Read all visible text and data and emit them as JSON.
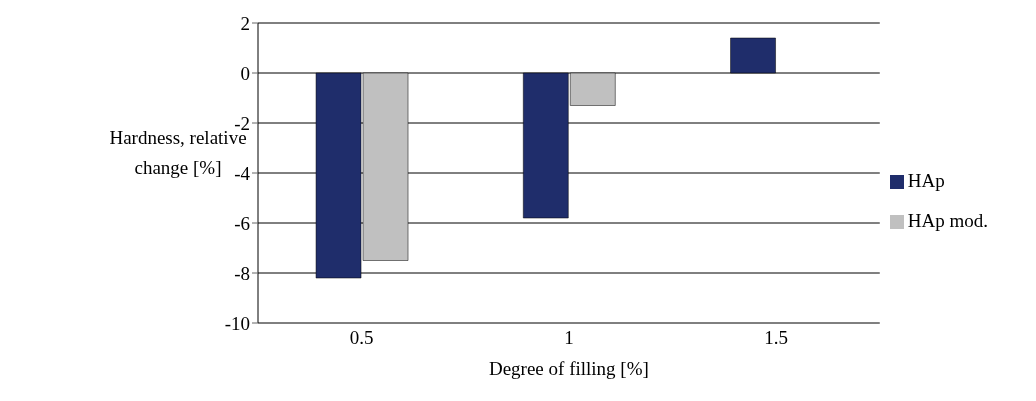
{
  "chart_data": {
    "type": "bar",
    "xlabel": "Degree of filling [%]",
    "ylabel": "Hardness, relative change [%]",
    "categories": [
      "0.5",
      "1",
      "1.5"
    ],
    "series": [
      {
        "name": "HAp",
        "color": "#1f2d6b",
        "values": [
          -8.2,
          -5.8,
          1.4
        ]
      },
      {
        "name": "HAp mod.",
        "color": "#c0c0c0",
        "values": [
          -7.5,
          -1.3,
          null
        ]
      }
    ],
    "ylim": [
      -10,
      2
    ],
    "yticks": [
      -10,
      -8,
      -6,
      -4,
      -2,
      0,
      2
    ],
    "grid": "y",
    "legend": "right"
  }
}
